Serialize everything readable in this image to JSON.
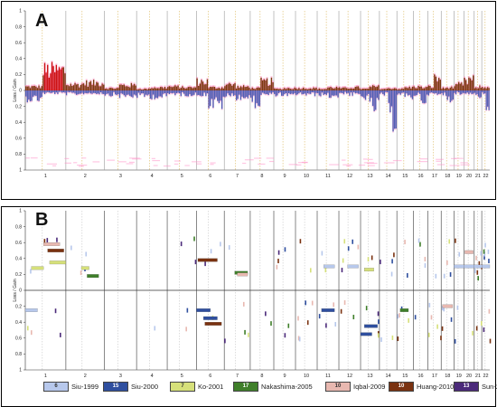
{
  "chart_data": [
    {
      "panel_label": "A",
      "type": "bar",
      "ylabel": "Loss / Gain",
      "ylim": [
        -1,
        1
      ],
      "yticks": [
        "1",
        "0.8",
        "0.6",
        "0.4",
        "0.2",
        "0",
        "0.2",
        "0.4",
        "0.6",
        "0.8",
        "1"
      ],
      "chromosomes": [
        "1",
        "2",
        "3",
        "4",
        "5",
        "6",
        "7",
        "8",
        "9",
        "10",
        "11",
        "12",
        "13",
        "14",
        "15",
        "16",
        "17",
        "18",
        "19",
        "20",
        "21",
        "22"
      ],
      "chromosome_widths": [
        8.6,
        8.2,
        6.8,
        6.5,
        6.2,
        5.9,
        5.5,
        5.0,
        4.6,
        4.6,
        4.6,
        4.6,
        4.0,
        3.7,
        3.5,
        3.1,
        2.8,
        2.7,
        2.1,
        2.2,
        1.6,
        1.7
      ],
      "gain_profile": [
        {
          "chromosome": "1",
          "p_arm": 0.05,
          "q_arm": 0.27
        },
        {
          "chromosome": "2",
          "p_arm": 0.08,
          "q_arm": 0.1
        },
        {
          "chromosome": "3",
          "p_arm": 0.03,
          "q_arm": 0.07
        },
        {
          "chromosome": "4",
          "p_arm": 0.02,
          "q_arm": 0.04
        },
        {
          "chromosome": "5",
          "p_arm": 0.05,
          "q_arm": 0.04
        },
        {
          "chromosome": "6",
          "p_arm": 0.12,
          "q_arm": 0.04
        },
        {
          "chromosome": "7",
          "p_arm": 0.08,
          "q_arm": 0.05
        },
        {
          "chromosome": "8",
          "p_arm": 0.03,
          "q_arm": 0.12
        },
        {
          "chromosome": "9",
          "p_arm": 0.02,
          "q_arm": 0.03
        },
        {
          "chromosome": "10",
          "p_arm": 0.03,
          "q_arm": 0.03
        },
        {
          "chromosome": "11",
          "p_arm": 0.02,
          "q_arm": 0.04
        },
        {
          "chromosome": "12",
          "p_arm": 0.03,
          "q_arm": 0.04
        },
        {
          "chromosome": "13",
          "p_arm": 0.02,
          "q_arm": 0.05
        },
        {
          "chromosome": "14",
          "p_arm": 0.02,
          "q_arm": 0.03
        },
        {
          "chromosome": "15",
          "p_arm": 0.02,
          "q_arm": 0.04
        },
        {
          "chromosome": "16",
          "p_arm": 0.05,
          "q_arm": 0.04
        },
        {
          "chromosome": "17",
          "p_arm": 0.05,
          "q_arm": 0.16
        },
        {
          "chromosome": "18",
          "p_arm": 0.03,
          "q_arm": 0.04
        },
        {
          "chromosome": "19",
          "p_arm": 0.06,
          "q_arm": 0.08
        },
        {
          "chromosome": "20",
          "p_arm": 0.12,
          "q_arm": 0.15
        },
        {
          "chromosome": "21",
          "p_arm": 0.03,
          "q_arm": 0.05
        },
        {
          "chromosome": "22",
          "p_arm": 0.04,
          "q_arm": 0.05
        }
      ],
      "loss_profile": [
        {
          "chromosome": "1",
          "p_arm": 0.12,
          "q_arm": 0.04
        },
        {
          "chromosome": "2",
          "p_arm": 0.05,
          "q_arm": 0.04
        },
        {
          "chromosome": "3",
          "p_arm": 0.06,
          "q_arm": 0.08
        },
        {
          "chromosome": "4",
          "p_arm": 0.08,
          "q_arm": 0.09
        },
        {
          "chromosome": "5",
          "p_arm": 0.05,
          "q_arm": 0.06
        },
        {
          "chromosome": "6",
          "p_arm": 0.06,
          "q_arm": 0.2
        },
        {
          "chromosome": "7",
          "p_arm": 0.08,
          "q_arm": 0.1
        },
        {
          "chromosome": "8",
          "p_arm": 0.18,
          "q_arm": 0.06
        },
        {
          "chromosome": "9",
          "p_arm": 0.06,
          "q_arm": 0.08
        },
        {
          "chromosome": "10",
          "p_arm": 0.05,
          "q_arm": 0.06
        },
        {
          "chromosome": "11",
          "p_arm": 0.06,
          "q_arm": 0.08
        },
        {
          "chromosome": "12",
          "p_arm": 0.04,
          "q_arm": 0.06
        },
        {
          "chromosome": "13",
          "p_arm": 0.1,
          "q_arm": 0.24
        },
        {
          "chromosome": "14",
          "p_arm": 0.06,
          "q_arm": 0.42
        },
        {
          "chromosome": "15",
          "p_arm": 0.05,
          "q_arm": 0.1
        },
        {
          "chromosome": "16",
          "p_arm": 0.06,
          "q_arm": 0.14
        },
        {
          "chromosome": "17",
          "p_arm": 0.05,
          "q_arm": 0.06
        },
        {
          "chromosome": "18",
          "p_arm": 0.06,
          "q_arm": 0.12
        },
        {
          "chromosome": "19",
          "p_arm": 0.04,
          "q_arm": 0.05
        },
        {
          "chromosome": "20",
          "p_arm": 0.04,
          "q_arm": 0.04
        },
        {
          "chromosome": "21",
          "p_arm": 0.06,
          "q_arm": 0.08
        },
        {
          "chromosome": "22",
          "p_arm": 0.05,
          "q_arm": 0.3
        }
      ],
      "colors": {
        "gain": "#7a3b10",
        "gain_highlight": "#cc1111",
        "gain_halo": "#ff6fb0",
        "loss": "#4f5fb5",
        "loss_halo": "#ff6fb0",
        "chrom_line": "#888888",
        "centromere": "#d4aa3c"
      }
    },
    {
      "panel_label": "B",
      "type": "segment",
      "ylabel": "Loss / Gain",
      "ylim": [
        -1,
        1
      ],
      "yticks": [
        "1",
        "0.8",
        "0.6",
        "0.4",
        "0.2",
        "0",
        "0.2",
        "0.4",
        "0.6",
        "0.8",
        "1"
      ],
      "chromosomes": [
        "1",
        "2",
        "3",
        "4",
        "5",
        "6",
        "7",
        "8",
        "9",
        "10",
        "11",
        "12",
        "13",
        "14",
        "15",
        "16",
        "17",
        "18",
        "19",
        "20",
        "21",
        "22"
      ],
      "series": [
        {
          "name": "Siu-1999",
          "n": "6",
          "color": "#b7c8ec"
        },
        {
          "name": "Siu-2000",
          "n": "15",
          "color": "#2f4f9f"
        },
        {
          "name": "Ko-2001",
          "n": "7",
          "color": "#d6e07a"
        },
        {
          "name": "Nakashima-2005",
          "n": "17",
          "color": "#3f7f2a"
        },
        {
          "name": "Iqbal-2009",
          "n": "10",
          "color": "#e8b8b0"
        },
        {
          "name": "Huang-2010",
          "n": "10",
          "color": "#7a3210"
        },
        {
          "name": "Sun-2014",
          "n": "13",
          "color": "#4b2a7a"
        }
      ],
      "segments": [
        {
          "series": 0,
          "chrom": "1",
          "from": 0.0,
          "to": 0.3,
          "value": -0.25
        },
        {
          "series": 2,
          "chrom": "1",
          "from": 0.15,
          "to": 0.45,
          "value": 0.28
        },
        {
          "series": 4,
          "chrom": "1",
          "from": 0.45,
          "to": 0.85,
          "value": 0.58
        },
        {
          "series": 5,
          "chrom": "1",
          "from": 0.55,
          "to": 0.95,
          "value": 0.5
        },
        {
          "series": 2,
          "chrom": "1",
          "from": 0.6,
          "to": 1.0,
          "value": 0.35
        },
        {
          "series": 3,
          "chrom": "2",
          "from": 0.55,
          "to": 0.85,
          "value": 0.18
        },
        {
          "series": 2,
          "chrom": "2",
          "from": 0.4,
          "to": 0.6,
          "value": 0.28
        },
        {
          "series": 5,
          "chrom": "6",
          "from": 0.05,
          "to": 0.75,
          "value": 0.38
        },
        {
          "series": 1,
          "chrom": "6",
          "from": 0.0,
          "to": 0.5,
          "value": -0.25
        },
        {
          "series": 5,
          "chrom": "6",
          "from": 0.3,
          "to": 0.9,
          "value": -0.42
        },
        {
          "series": 1,
          "chrom": "6",
          "from": 0.25,
          "to": 0.75,
          "value": -0.35
        },
        {
          "series": 3,
          "chrom": "7",
          "from": 0.4,
          "to": 0.9,
          "value": 0.22
        },
        {
          "series": 4,
          "chrom": "7",
          "from": 0.5,
          "to": 0.9,
          "value": 0.2
        },
        {
          "series": 1,
          "chrom": "11",
          "from": 0.2,
          "to": 0.8,
          "value": -0.25
        },
        {
          "series": 0,
          "chrom": "11",
          "from": 0.3,
          "to": 0.8,
          "value": 0.3
        },
        {
          "series": 0,
          "chrom": "12",
          "from": 0.4,
          "to": 0.9,
          "value": 0.3
        },
        {
          "series": 1,
          "chrom": "13",
          "from": 0.0,
          "to": 0.6,
          "value": -0.55
        },
        {
          "series": 1,
          "chrom": "13",
          "from": 0.2,
          "to": 0.9,
          "value": -0.45
        },
        {
          "series": 2,
          "chrom": "13",
          "from": 0.2,
          "to": 0.7,
          "value": 0.26
        },
        {
          "series": 3,
          "chrom": "15",
          "from": 0.2,
          "to": 0.7,
          "value": -0.25
        },
        {
          "series": 4,
          "chrom": "18",
          "from": 0.1,
          "to": 0.9,
          "value": -0.2
        },
        {
          "series": 4,
          "chrom": "20",
          "from": 0.1,
          "to": 0.9,
          "value": 0.48
        },
        {
          "series": 0,
          "chrom": "19",
          "from": 0.0,
          "to": 1.0,
          "value": 0.3
        },
        {
          "series": 0,
          "chrom": "20",
          "from": 0.0,
          "to": 1.0,
          "value": 0.3
        },
        {
          "series": 0,
          "chrom": "21",
          "from": 0.0,
          "to": 1.0,
          "value": 0.3
        },
        {
          "series": 0,
          "chrom": "22",
          "from": 0.0,
          "to": 1.0,
          "value": 0.3
        }
      ]
    }
  ]
}
